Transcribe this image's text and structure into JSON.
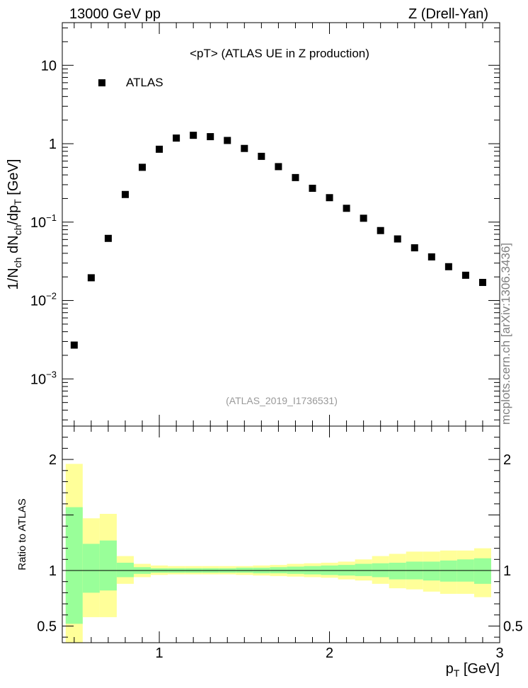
{
  "header": {
    "left": "13000 GeV pp",
    "right": "Z (Drell-Yan)"
  },
  "side_label": "mcplots.cern.ch [arXiv:1306.3436]",
  "colors": {
    "data_marker": "#000000",
    "band_outer": "#ffff99",
    "band_inner": "#99ff99",
    "analysis_label": "#999999",
    "side_label": "#808080"
  },
  "chart_data": [
    {
      "panel": "main",
      "type": "scatter",
      "title": "<pT> (ATLAS UE in Z production)",
      "watermark": "(ATLAS_2019_I1736531)",
      "ylabel": "1/N_ch dN_ch/dp_T [GeV]",
      "yscale": "log",
      "xlim": [
        0.43,
        3.0
      ],
      "ylim": [
        0.00025,
        35
      ],
      "y_ticks": [
        {
          "value": 0.001,
          "label": "10",
          "exp": "−3"
        },
        {
          "value": 0.01,
          "label": "10",
          "exp": "−2"
        },
        {
          "value": 0.1,
          "label": "10",
          "exp": "−1"
        },
        {
          "value": 1,
          "label": "1",
          "exp": ""
        },
        {
          "value": 10,
          "label": "10",
          "exp": ""
        }
      ],
      "legend": {
        "placement": "top-left",
        "entries": [
          "ATLAS"
        ]
      },
      "series": [
        {
          "name": "ATLAS",
          "x": [
            0.5,
            0.6,
            0.7,
            0.8,
            0.9,
            1.0,
            1.1,
            1.2,
            1.3,
            1.4,
            1.5,
            1.6,
            1.7,
            1.8,
            1.9,
            2.0,
            2.1,
            2.2,
            2.3,
            2.4,
            2.5,
            2.6,
            2.7,
            2.8,
            2.9
          ],
          "y": [
            0.0027,
            0.0195,
            0.062,
            0.225,
            0.5,
            0.85,
            1.18,
            1.28,
            1.23,
            1.1,
            0.87,
            0.69,
            0.51,
            0.37,
            0.27,
            0.205,
            0.15,
            0.112,
            0.078,
            0.061,
            0.047,
            0.036,
            0.027,
            0.021,
            0.017
          ]
        }
      ]
    },
    {
      "panel": "ratio",
      "type": "area",
      "ylabel": "Ratio to ATLAS",
      "xlabel": "p_T [GeV]",
      "xlim": [
        0.43,
        3.0
      ],
      "ylim": [
        0.35,
        2.3
      ],
      "x_ticks": [
        {
          "value": 1,
          "label": "1"
        },
        {
          "value": 2,
          "label": "2"
        },
        {
          "value": 3,
          "label": "3"
        }
      ],
      "y_ticks": [
        {
          "value": 0.5,
          "label": "0.5"
        },
        {
          "value": 1,
          "label": "1"
        },
        {
          "value": 2,
          "label": "2"
        }
      ],
      "reference_line": 1,
      "bin_edges": [
        0.45,
        0.55,
        0.65,
        0.75,
        0.85,
        0.95,
        1.05,
        1.15,
        1.25,
        1.35,
        1.45,
        1.55,
        1.65,
        1.75,
        1.85,
        1.95,
        2.05,
        2.15,
        2.25,
        2.35,
        2.45,
        2.55,
        2.65,
        2.75,
        2.85,
        2.95
      ],
      "outer_band_low": [
        0.3,
        0.58,
        0.58,
        0.88,
        0.94,
        0.96,
        0.965,
        0.965,
        0.965,
        0.965,
        0.96,
        0.955,
        0.95,
        0.945,
        0.94,
        0.935,
        0.92,
        0.91,
        0.88,
        0.84,
        0.83,
        0.81,
        0.79,
        0.79,
        0.76
      ],
      "inner_band_low": [
        0.52,
        0.8,
        0.82,
        0.94,
        0.97,
        0.98,
        0.98,
        0.98,
        0.98,
        0.98,
        0.98,
        0.975,
        0.975,
        0.97,
        0.965,
        0.96,
        0.955,
        0.95,
        0.94,
        0.92,
        0.92,
        0.91,
        0.9,
        0.9,
        0.88
      ],
      "inner_band_high": [
        1.57,
        1.24,
        1.27,
        1.07,
        1.03,
        1.02,
        1.02,
        1.02,
        1.02,
        1.02,
        1.025,
        1.025,
        1.03,
        1.035,
        1.04,
        1.045,
        1.05,
        1.06,
        1.065,
        1.07,
        1.08,
        1.08,
        1.09,
        1.1,
        1.11
      ],
      "outer_band_high": [
        1.96,
        1.47,
        1.51,
        1.13,
        1.06,
        1.045,
        1.04,
        1.04,
        1.04,
        1.04,
        1.04,
        1.045,
        1.05,
        1.06,
        1.065,
        1.07,
        1.08,
        1.1,
        1.13,
        1.15,
        1.17,
        1.17,
        1.18,
        1.18,
        1.2
      ]
    }
  ]
}
